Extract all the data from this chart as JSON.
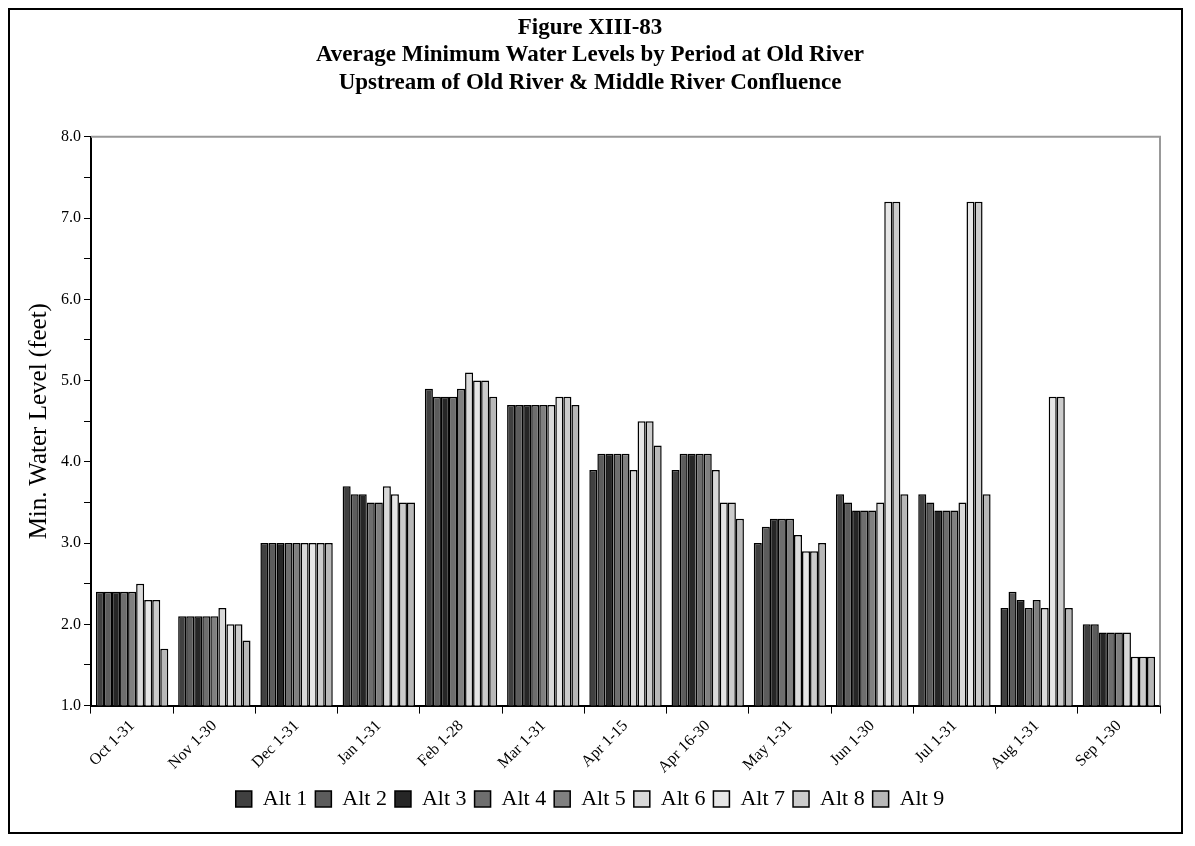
{
  "chart_data": {
    "type": "bar",
    "title": "Figure XIII-83\nAverage Minimum Water Levels by Period at Old River\nUpstream of Old River & Middle River Confluence",
    "ylabel": "Min. Water Level (feet)",
    "categories": [
      "Oct 1-31",
      "Nov 1-30",
      "Dec 1-31",
      "Jan 1-31",
      "Feb 1-28",
      "Mar 1-31",
      "Apr 1-15",
      "Apr 16-30",
      "May 1-31",
      "Jun 1-30",
      "Jul 1-31",
      "Aug 1-31",
      "Sep 1-30"
    ],
    "series": [
      {
        "name": "Alt 1",
        "color": "#404040",
        "values": [
          2.4,
          2.1,
          3.0,
          3.7,
          4.9,
          4.7,
          3.9,
          3.9,
          3.0,
          3.6,
          3.6,
          2.2,
          2.0
        ]
      },
      {
        "name": "Alt 2",
        "color": "#5c5c5c",
        "values": [
          2.4,
          2.1,
          3.0,
          3.6,
          4.8,
          4.7,
          4.1,
          4.1,
          3.2,
          3.5,
          3.5,
          2.4,
          2.0
        ]
      },
      {
        "name": "Alt 3",
        "color": "#262626",
        "values": [
          2.4,
          2.1,
          3.0,
          3.6,
          4.8,
          4.7,
          4.1,
          4.1,
          3.3,
          3.4,
          3.4,
          2.3,
          1.9
        ]
      },
      {
        "name": "Alt 4",
        "color": "#6e6e6e",
        "values": [
          2.4,
          2.1,
          3.0,
          3.5,
          4.8,
          4.7,
          4.1,
          4.1,
          3.3,
          3.4,
          3.4,
          2.2,
          1.9
        ]
      },
      {
        "name": "Alt 5",
        "color": "#808080",
        "values": [
          2.4,
          2.1,
          3.0,
          3.5,
          4.9,
          4.7,
          4.1,
          4.1,
          3.3,
          3.4,
          3.4,
          2.3,
          1.9
        ]
      },
      {
        "name": "Alt 6",
        "color": "#d9d9d9",
        "values": [
          2.5,
          2.2,
          3.0,
          3.7,
          5.1,
          4.7,
          3.9,
          3.9,
          3.1,
          3.5,
          3.5,
          2.2,
          1.9
        ]
      },
      {
        "name": "Alt 7",
        "color": "#e6e6e6",
        "values": [
          2.3,
          2.0,
          3.0,
          3.6,
          5.0,
          4.8,
          4.5,
          3.5,
          2.9,
          7.2,
          7.2,
          4.8,
          1.6
        ]
      },
      {
        "name": "Alt 8",
        "color": "#cccccc",
        "values": [
          2.3,
          2.0,
          3.0,
          3.5,
          5.0,
          4.8,
          4.5,
          3.5,
          2.9,
          7.2,
          7.2,
          4.8,
          1.6
        ]
      },
      {
        "name": "Alt 9",
        "color": "#b8b8b8",
        "values": [
          1.7,
          1.8,
          3.0,
          3.5,
          4.8,
          4.7,
          4.2,
          3.3,
          3.0,
          3.6,
          3.6,
          2.2,
          1.6
        ]
      }
    ],
    "ylim": [
      1,
      8
    ],
    "yticks": [
      {
        "value": 1,
        "label": "1.0"
      },
      {
        "value": 1.5,
        "label": null
      },
      {
        "value": 2,
        "label": "2.0"
      },
      {
        "value": 2.5,
        "label": null
      },
      {
        "value": 3,
        "label": "3.0"
      },
      {
        "value": 3.5,
        "label": null
      },
      {
        "value": 4,
        "label": "4.0"
      },
      {
        "value": 4.5,
        "label": null
      },
      {
        "value": 5,
        "label": "5.0"
      },
      {
        "value": 5.5,
        "label": null
      },
      {
        "value": 6,
        "label": "6.0"
      },
      {
        "value": 6.5,
        "label": null
      },
      {
        "value": 7,
        "label": "7.0"
      },
      {
        "value": 7.5,
        "label": null
      },
      {
        "value": 8,
        "label": "8.0"
      }
    ],
    "legend": "bottom"
  }
}
